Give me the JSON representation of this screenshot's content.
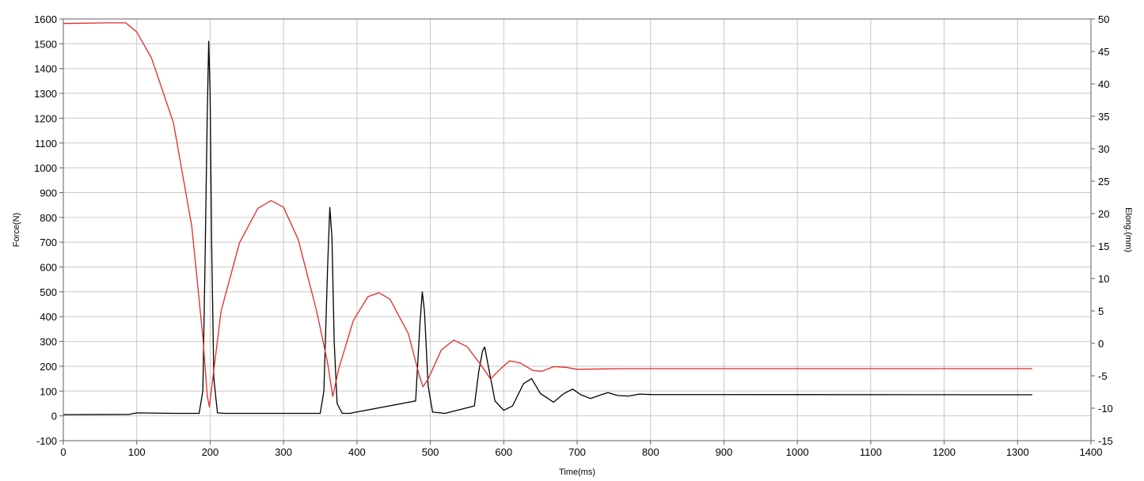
{
  "chart_data": {
    "type": "line",
    "title": "",
    "xlabel": "Time(ms)",
    "ylabel_left": "Force(N)",
    "ylabel_right": "Elong.(mm)",
    "xlim": [
      0,
      1400
    ],
    "ylim_left": [
      -100,
      1600
    ],
    "ylim_right": [
      -15,
      50
    ],
    "x_ticks": [
      "0",
      "100",
      "200",
      "300",
      "400",
      "500",
      "600",
      "700",
      "800",
      "900",
      "1000",
      "1100",
      "1200",
      "1300",
      "1400"
    ],
    "y_left_ticks": [
      "-100",
      "0",
      "100",
      "200",
      "300",
      "400",
      "500",
      "600",
      "700",
      "800",
      "900",
      "1000",
      "1100",
      "1200",
      "1300",
      "1400",
      "1500",
      "1600"
    ],
    "y_right_ticks": [
      "-15",
      "-10",
      "-5",
      "0",
      "5",
      "10",
      "15",
      "20",
      "25",
      "30",
      "35",
      "40",
      "45",
      "50"
    ],
    "grid": true,
    "series": [
      {
        "axis": "left",
        "color": "#000000",
        "x": [
          0,
          90,
          100,
          150,
          185,
          190,
          193,
          196,
          198,
          200,
          202,
          205,
          210,
          220,
          300,
          350,
          355,
          360,
          363,
          366,
          369,
          373,
          380,
          390,
          480,
          486,
          489,
          492,
          497,
          503,
          520,
          560,
          566,
          571,
          574,
          579,
          588,
          600,
          612,
          627,
          638,
          650,
          668,
          682,
          694,
          705,
          718,
          730,
          742,
          755,
          770,
          785,
          800,
          1320
        ],
        "y": [
          5,
          6,
          12,
          10,
          10,
          100,
          600,
          1200,
          1510,
          1300,
          700,
          150,
          12,
          10,
          10,
          10,
          100,
          600,
          840,
          720,
          300,
          50,
          10,
          10,
          60,
          380,
          500,
          420,
          120,
          15,
          10,
          40,
          180,
          260,
          278,
          200,
          60,
          22,
          40,
          130,
          150,
          90,
          55,
          90,
          108,
          85,
          70,
          82,
          94,
          82,
          80,
          88,
          86,
          85
        ]
      },
      {
        "axis": "right",
        "color": "#e32929",
        "x": [
          0,
          60,
          85,
          100,
          120,
          150,
          175,
          190,
          196,
          199,
          203,
          215,
          240,
          265,
          283,
          300,
          320,
          345,
          360,
          367,
          375,
          395,
          415,
          430,
          445,
          470,
          485,
          490,
          497,
          515,
          532,
          550,
          570,
          582,
          595,
          608,
          622,
          640,
          652,
          668,
          685,
          700,
          760,
          1320
        ],
        "y": [
          49.3,
          49.4,
          49.4,
          48.0,
          44.0,
          34.0,
          18.0,
          1.0,
          -8.0,
          -9.8,
          -6.0,
          5.0,
          15.5,
          20.8,
          22.0,
          21.0,
          16.0,
          5.0,
          -3.0,
          -8.2,
          -4.0,
          3.5,
          7.2,
          7.8,
          6.8,
          1.5,
          -5.0,
          -6.7,
          -5.5,
          -1.0,
          0.5,
          -0.5,
          -3.5,
          -5.5,
          -4.0,
          -2.7,
          -3.0,
          -4.2,
          -4.3,
          -3.6,
          -3.7,
          -4.0,
          -3.9,
          -3.9
        ]
      }
    ]
  }
}
